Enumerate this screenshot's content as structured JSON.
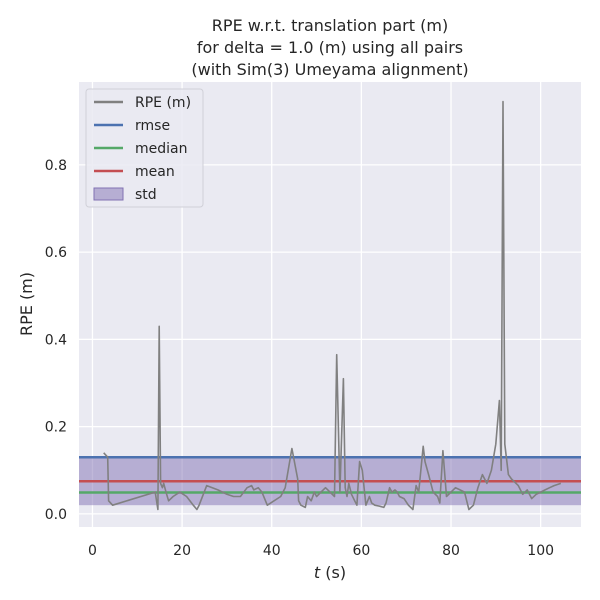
{
  "chart_data": {
    "type": "line",
    "title_lines": [
      "RPE w.r.t. translation part (m)",
      "for delta = 1.0 (m) using all pairs",
      "(with Sim(3) Umeyama alignment)"
    ],
    "xlabel_var": "t",
    "xlabel_unit": " (s)",
    "ylabel": "RPE (m)",
    "xlim": [
      -3,
      109
    ],
    "ylim": [
      -0.03,
      0.99
    ],
    "xticks": [
      0,
      20,
      40,
      60,
      80,
      100
    ],
    "yticks": [
      0.0,
      0.2,
      0.4,
      0.6,
      0.8
    ],
    "xtick_labels": [
      "0",
      "20",
      "40",
      "60",
      "80",
      "100"
    ],
    "ytick_labels": [
      "0.0",
      "0.2",
      "0.4",
      "0.6",
      "0.8"
    ],
    "grid": true,
    "legend_position": "top-left",
    "legend": [
      {
        "label": "RPE (m)",
        "kind": "line",
        "color": "#808080"
      },
      {
        "label": "rmse",
        "kind": "line",
        "color": "#4c72b0"
      },
      {
        "label": "median",
        "kind": "line",
        "color": "#55a868"
      },
      {
        "label": "mean",
        "kind": "line",
        "color": "#c44e52"
      },
      {
        "label": "std",
        "kind": "patch",
        "color": "#8172b3"
      }
    ],
    "stats": {
      "rmse": 0.13,
      "median": 0.049,
      "mean": 0.075,
      "std_band": [
        0.02,
        0.13
      ]
    },
    "series": [
      {
        "name": "RPE (m)",
        "color": "#808080",
        "x": [
          2.5,
          3.4,
          3.6,
          4.5,
          14.0,
          14.6,
          14.9,
          15.2,
          15.6,
          15.9,
          16.4,
          17.0,
          18.0,
          19.5,
          21.0,
          22.5,
          23.3,
          23.8,
          25.5,
          28.0,
          30.0,
          31.5,
          33.0,
          34.5,
          35.5,
          36.0,
          37.0,
          37.8,
          39.0,
          42.0,
          43.0,
          44.5,
          45.8,
          46.0,
          46.5,
          47.5,
          48.0,
          48.8,
          49.5,
          50.0,
          51.0,
          52.0,
          53.0,
          54.0,
          54.5,
          55.2,
          56.0,
          56.4,
          56.8,
          57.2,
          57.8,
          58.5,
          59.0,
          59.6,
          60.2,
          61.0,
          61.8,
          62.3,
          63.0,
          64.0,
          65.0,
          65.5,
          66.3,
          66.8,
          67.5,
          68.0,
          68.5,
          69.5,
          70.5,
          71.5,
          72.2,
          72.8,
          73.8,
          74.2,
          75.0,
          76.0,
          77.0,
          77.5,
          78.2,
          79.0,
          80.0,
          81.0,
          82.0,
          83.0,
          84.0,
          85.0,
          86.0,
          87.0,
          88.0,
          89.0,
          90.0,
          90.8,
          91.2,
          91.6,
          92.0,
          92.8,
          93.5,
          95.0,
          96.0,
          97.0,
          98.0,
          99.0,
          100.0,
          101.0,
          102.0,
          103.0,
          104.5
        ],
        "values": [
          0.14,
          0.13,
          0.03,
          0.02,
          0.05,
          0.01,
          0.43,
          0.07,
          0.06,
          0.07,
          0.05,
          0.03,
          0.04,
          0.05,
          0.04,
          0.02,
          0.01,
          0.02,
          0.065,
          0.055,
          0.045,
          0.04,
          0.04,
          0.06,
          0.065,
          0.055,
          0.06,
          0.05,
          0.02,
          0.04,
          0.06,
          0.15,
          0.08,
          0.03,
          0.02,
          0.015,
          0.04,
          0.03,
          0.05,
          0.04,
          0.05,
          0.06,
          0.05,
          0.04,
          0.365,
          0.05,
          0.31,
          0.06,
          0.04,
          0.07,
          0.045,
          0.03,
          0.02,
          0.12,
          0.1,
          0.02,
          0.04,
          0.025,
          0.02,
          0.018,
          0.015,
          0.025,
          0.06,
          0.05,
          0.055,
          0.05,
          0.04,
          0.035,
          0.02,
          0.01,
          0.065,
          0.05,
          0.155,
          0.12,
          0.09,
          0.05,
          0.04,
          0.025,
          0.145,
          0.04,
          0.05,
          0.06,
          0.055,
          0.05,
          0.01,
          0.02,
          0.06,
          0.09,
          0.07,
          0.1,
          0.16,
          0.26,
          0.1,
          0.945,
          0.16,
          0.09,
          0.08,
          0.065,
          0.045,
          0.055,
          0.035,
          0.045,
          0.05,
          0.055,
          0.06,
          0.065,
          0.07
        ]
      }
    ]
  }
}
